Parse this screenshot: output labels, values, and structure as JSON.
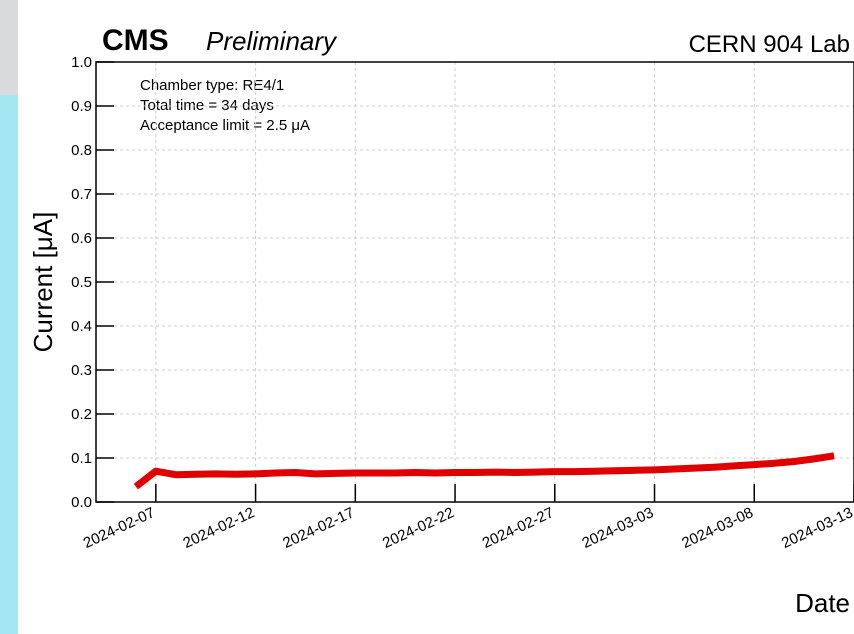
{
  "chart_data": {
    "type": "line",
    "title": "CMS",
    "subtitle": "Preliminary",
    "location": "CERN 904 Lab",
    "annotations": [
      "Chamber type: RE4/1",
      "Total time = 34 days",
      "Acceptance limit = 2.5 μA"
    ],
    "x_label": "Date",
    "y_label": "Current [μA]",
    "x": [
      "2024-02-06",
      "2024-02-07",
      "2024-02-08",
      "2024-02-09",
      "2024-02-10",
      "2024-02-11",
      "2024-02-12",
      "2024-02-13",
      "2024-02-14",
      "2024-02-15",
      "2024-02-16",
      "2024-02-17",
      "2024-02-18",
      "2024-02-19",
      "2024-02-20",
      "2024-02-21",
      "2024-02-22",
      "2024-02-23",
      "2024-02-24",
      "2024-02-25",
      "2024-02-26",
      "2024-02-27",
      "2024-02-28",
      "2024-02-29",
      "2024-03-01",
      "2024-03-02",
      "2024-03-03",
      "2024-03-04",
      "2024-03-05",
      "2024-03-06",
      "2024-03-07",
      "2024-03-08",
      "2024-03-09",
      "2024-03-10",
      "2024-03-11",
      "2024-03-12"
    ],
    "series": [
      {
        "name": "Current",
        "color": "#e00000",
        "values": [
          0.035,
          0.07,
          0.062,
          0.063,
          0.064,
          0.063,
          0.064,
          0.066,
          0.067,
          0.064,
          0.065,
          0.066,
          0.066,
          0.066,
          0.067,
          0.066,
          0.067,
          0.067,
          0.068,
          0.067,
          0.068,
          0.069,
          0.069,
          0.07,
          0.071,
          0.072,
          0.073,
          0.075,
          0.077,
          0.079,
          0.082,
          0.085,
          0.088,
          0.092,
          0.098,
          0.105
        ]
      }
    ],
    "xlim": [
      "2024-02-04",
      "2024-03-13"
    ],
    "xticks": [
      "2024-02-07",
      "2024-02-12",
      "2024-02-17",
      "2024-02-22",
      "2024-02-27",
      "2024-03-03",
      "2024-03-08",
      "2024-03-13"
    ],
    "ylim": [
      0,
      1
    ],
    "yticks": [
      {
        "value": 0,
        "label": "0.0"
      },
      0.1,
      0.2,
      0.3,
      0.4,
      0.5,
      0.6,
      0.7,
      0.8,
      0.9,
      {
        "value": 1,
        "label": "1.0"
      }
    ],
    "grid": true
  }
}
